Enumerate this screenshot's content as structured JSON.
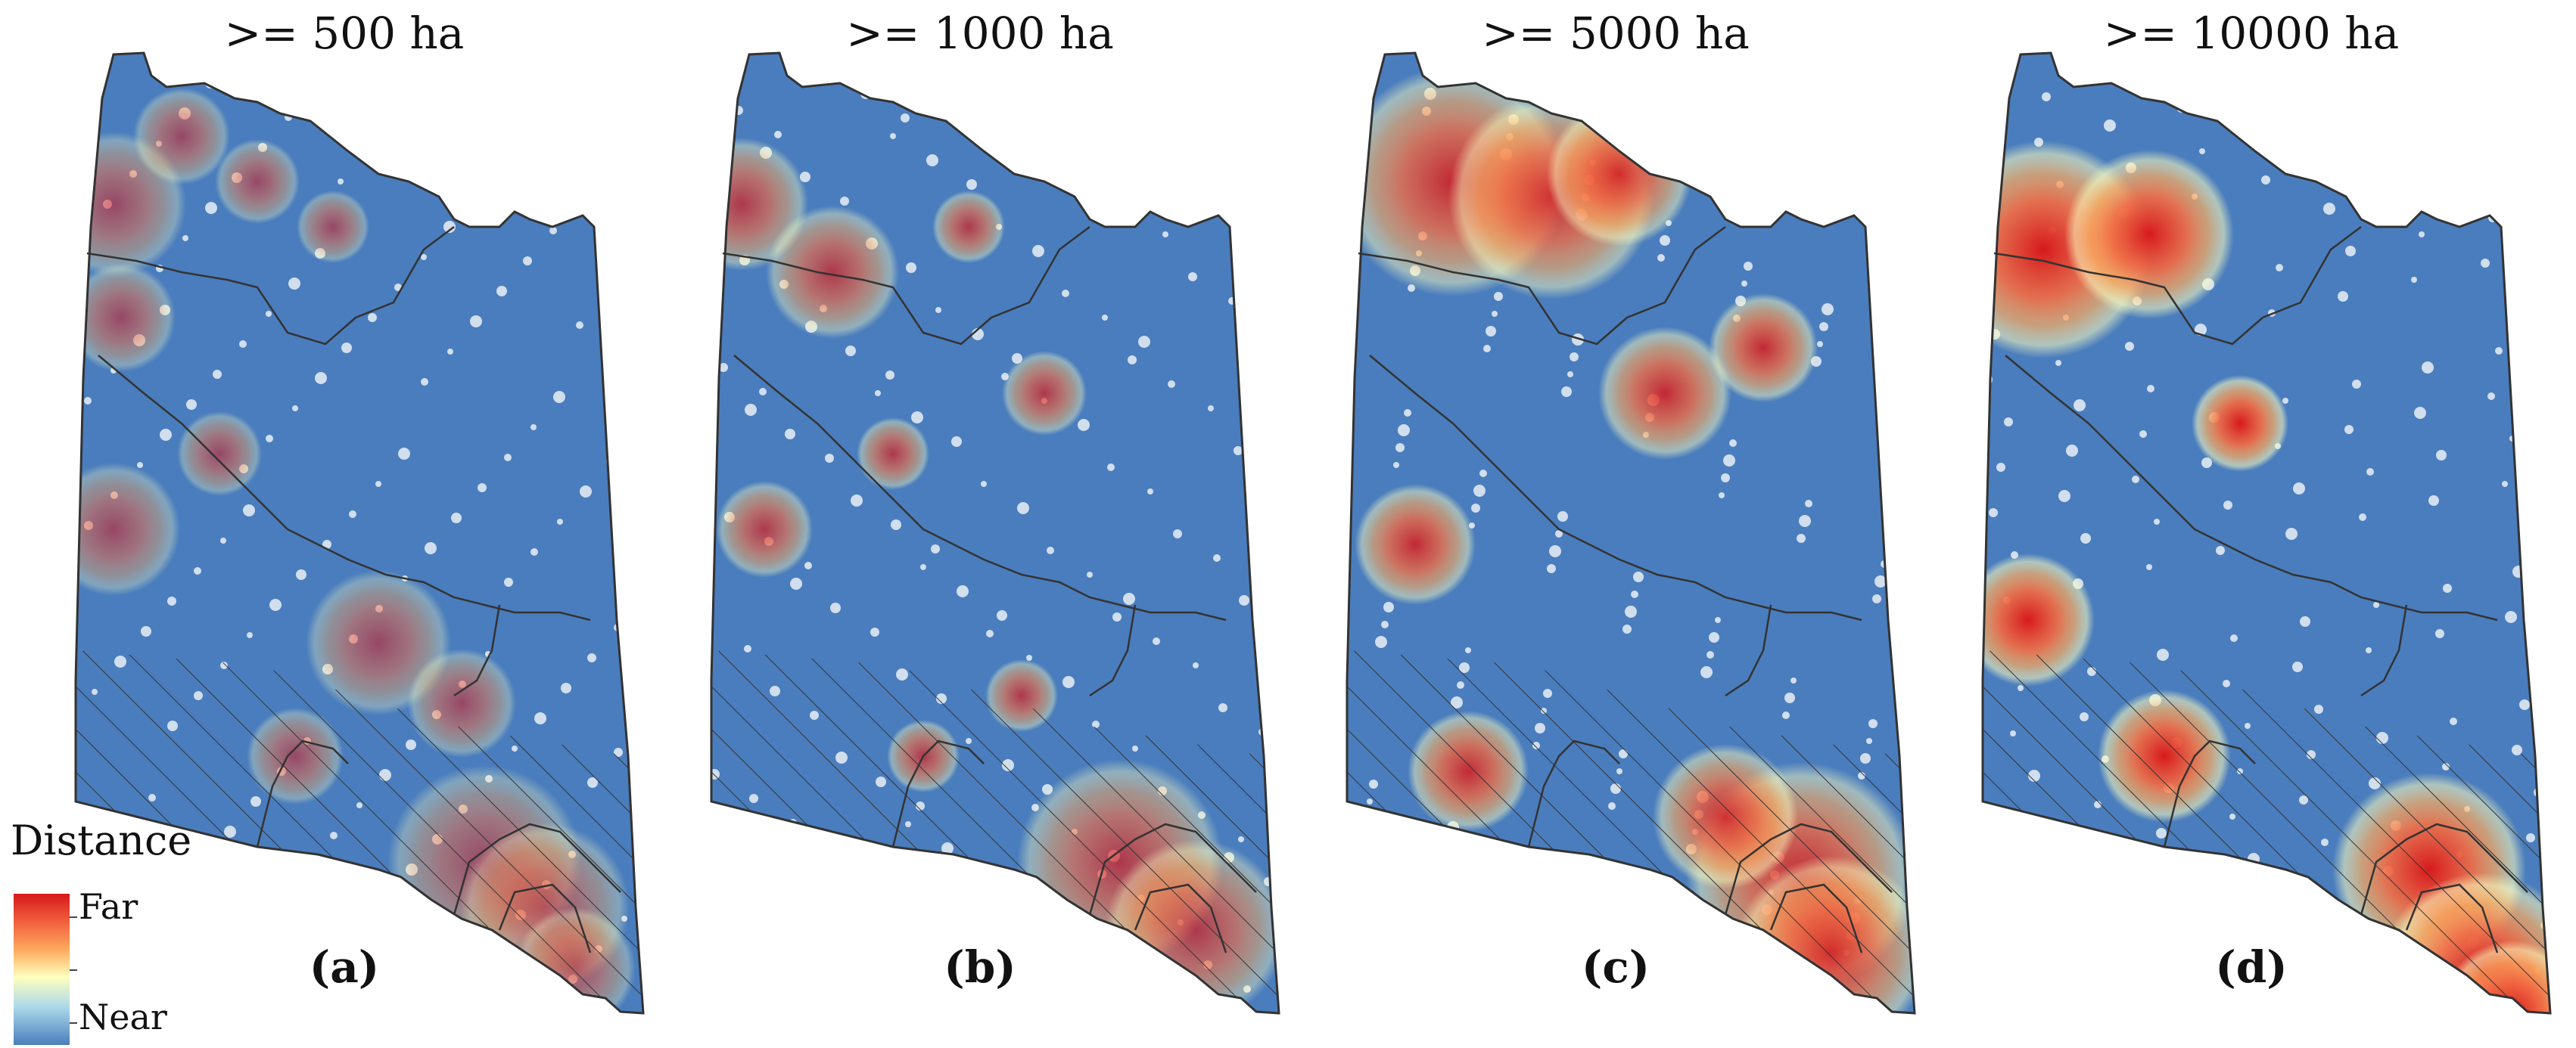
{
  "panels": [
    {
      "title": ">= 500 ha",
      "label": "(a)"
    },
    {
      "title": ">= 1000 ha",
      "label": "(b)"
    },
    {
      "title": ">= 5000 ha",
      "label": "(c)"
    },
    {
      "title": ">= 10000 ha",
      "label": "(d)"
    }
  ],
  "legend": {
    "title": "Distance",
    "high_label": "Far",
    "low_label": "Near"
  },
  "colors": {
    "far": "#d7191c",
    "mid": "#ffffbf",
    "near": "#4a7dbd",
    "boundary": "#333333"
  },
  "hotspot_intensity": [
    0.55,
    0.7,
    0.85,
    1.0
  ]
}
